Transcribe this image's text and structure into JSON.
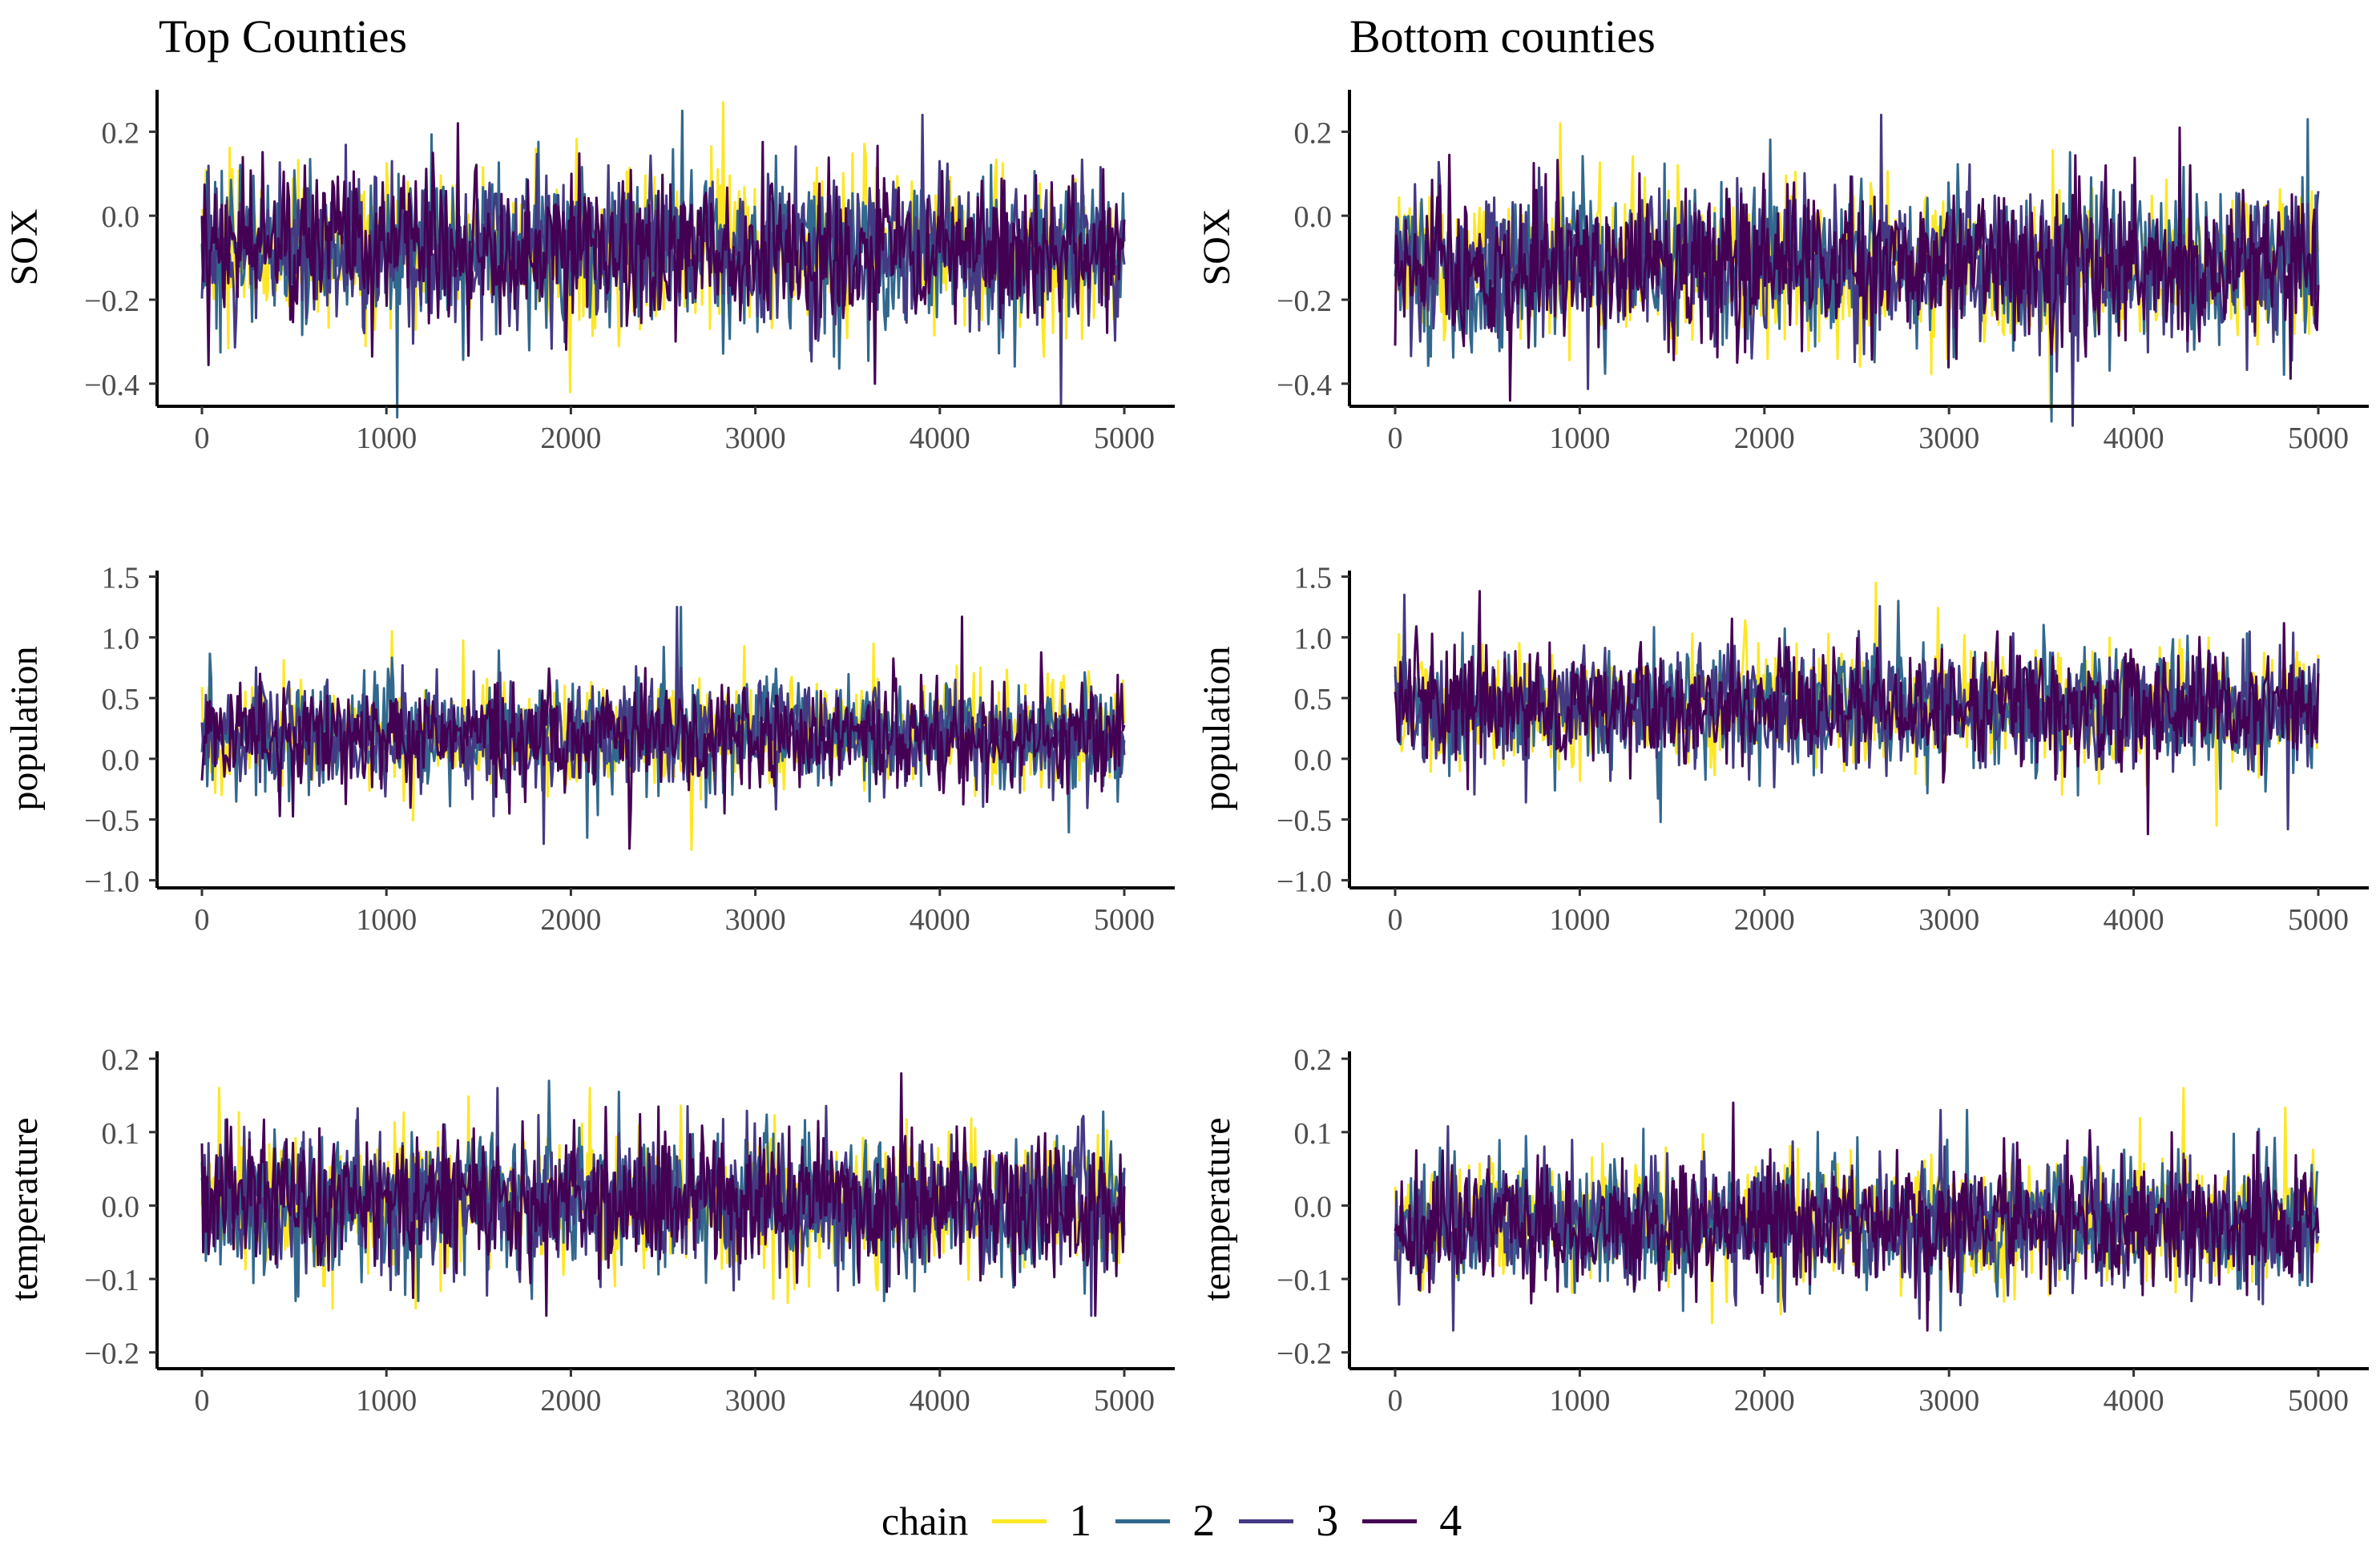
{
  "titles": {
    "left": "Top Counties",
    "right": "Bottom counties"
  },
  "legend": {
    "title": "chain",
    "items": [
      {
        "label": "1",
        "color": "#FDE725"
      },
      {
        "label": "2",
        "color": "#31688E"
      },
      {
        "label": "3",
        "color": "#443A83"
      },
      {
        "label": "4",
        "color": "#440154"
      }
    ]
  },
  "chart_data": [
    {
      "type": "line",
      "title": "Top Counties",
      "ylabel": "SOX",
      "xlabel": "",
      "xlim": [
        0,
        5000
      ],
      "ylim": [
        -0.45,
        0.3
      ],
      "xticks": [
        0,
        1000,
        2000,
        3000,
        4000,
        5000
      ],
      "xtick_labels": [
        "0",
        "1000",
        "2000",
        "3000",
        "4000",
        "5000"
      ],
      "yticks": [
        0.2,
        0.0,
        -0.2,
        -0.4
      ],
      "ytick_labels": [
        "0.2",
        "0.0",
        "−0.2",
        "−0.4"
      ],
      "series": [
        {
          "name": "1",
          "mean": -0.08,
          "sd": 0.09,
          "min": -0.42,
          "max": 0.27
        },
        {
          "name": "2",
          "mean": -0.08,
          "sd": 0.09,
          "min": -0.48,
          "max": 0.25
        },
        {
          "name": "3",
          "mean": -0.08,
          "sd": 0.09,
          "min": -0.45,
          "max": 0.24
        },
        {
          "name": "4",
          "mean": -0.08,
          "sd": 0.09,
          "min": -0.4,
          "max": 0.22
        }
      ]
    },
    {
      "type": "line",
      "title": "Bottom counties",
      "ylabel": "SOX",
      "xlabel": "",
      "xlim": [
        0,
        5000
      ],
      "ylim": [
        -0.45,
        0.3
      ],
      "xticks": [
        0,
        1000,
        2000,
        3000,
        4000,
        5000
      ],
      "xtick_labels": [
        "0",
        "1000",
        "2000",
        "3000",
        "4000",
        "5000"
      ],
      "yticks": [
        0.2,
        0.0,
        -0.2,
        -0.4
      ],
      "ytick_labels": [
        "0.2",
        "0.0",
        "−0.2",
        "−0.4"
      ],
      "series": [
        {
          "name": "1",
          "mean": -0.12,
          "sd": 0.09,
          "min": -0.46,
          "max": 0.22
        },
        {
          "name": "2",
          "mean": -0.12,
          "sd": 0.09,
          "min": -0.49,
          "max": 0.23
        },
        {
          "name": "3",
          "mean": -0.12,
          "sd": 0.09,
          "min": -0.5,
          "max": 0.24
        },
        {
          "name": "4",
          "mean": -0.12,
          "sd": 0.09,
          "min": -0.44,
          "max": 0.21
        }
      ]
    },
    {
      "type": "line",
      "title": "",
      "ylabel": "population",
      "xlabel": "",
      "xlim": [
        0,
        5000
      ],
      "ylim": [
        -1.05,
        1.55
      ],
      "xticks": [
        0,
        1000,
        2000,
        3000,
        4000,
        5000
      ],
      "xtick_labels": [
        "0",
        "1000",
        "2000",
        "3000",
        "4000",
        "5000"
      ],
      "yticks": [
        1.5,
        1.0,
        0.5,
        0.0,
        -0.5,
        -1.0
      ],
      "ytick_labels": [
        "1.5",
        "1.0",
        "0.5",
        "0.0",
        "−0.5",
        "−1.0"
      ],
      "series": [
        {
          "name": "1",
          "mean": 0.2,
          "sd": 0.22,
          "min": -0.75,
          "max": 1.05
        },
        {
          "name": "2",
          "mean": 0.2,
          "sd": 0.22,
          "min": -0.65,
          "max": 1.25
        },
        {
          "name": "3",
          "mean": 0.2,
          "sd": 0.22,
          "min": -0.7,
          "max": 1.25
        },
        {
          "name": "4",
          "mean": 0.2,
          "sd": 0.22,
          "min": -0.74,
          "max": 1.17
        }
      ]
    },
    {
      "type": "line",
      "title": "",
      "ylabel": "population",
      "xlabel": "",
      "xlim": [
        0,
        5000
      ],
      "ylim": [
        -1.05,
        1.55
      ],
      "xticks": [
        0,
        1000,
        2000,
        3000,
        4000,
        5000
      ],
      "xtick_labels": [
        "0",
        "1000",
        "2000",
        "3000",
        "4000",
        "5000"
      ],
      "yticks": [
        1.5,
        1.0,
        0.5,
        0.0,
        -0.5,
        -1.0
      ],
      "ytick_labels": [
        "1.5",
        "1.0",
        "0.5",
        "0.0",
        "−0.5",
        "−1.0"
      ],
      "series": [
        {
          "name": "1",
          "mean": 0.42,
          "sd": 0.24,
          "min": -0.55,
          "max": 1.45
        },
        {
          "name": "2",
          "mean": 0.42,
          "sd": 0.24,
          "min": -0.52,
          "max": 1.3
        },
        {
          "name": "3",
          "mean": 0.42,
          "sd": 0.24,
          "min": -0.58,
          "max": 1.35
        },
        {
          "name": "4",
          "mean": 0.42,
          "sd": 0.24,
          "min": -0.62,
          "max": 1.38
        }
      ]
    },
    {
      "type": "line",
      "title": "",
      "ylabel": "temperature",
      "xlabel": "",
      "xlim": [
        0,
        5000
      ],
      "ylim": [
        -0.22,
        0.21
      ],
      "xticks": [
        0,
        1000,
        2000,
        3000,
        4000,
        5000
      ],
      "xtick_labels": [
        "0",
        "1000",
        "2000",
        "3000",
        "4000",
        "5000"
      ],
      "yticks": [
        0.2,
        0.1,
        0.0,
        -0.1,
        -0.2
      ],
      "ytick_labels": [
        "0.2",
        "0.1",
        "0.0",
        "−0.1",
        "−0.2"
      ],
      "series": [
        {
          "name": "1",
          "mean": 0.005,
          "sd": 0.045,
          "min": -0.14,
          "max": 0.16
        },
        {
          "name": "2",
          "mean": 0.005,
          "sd": 0.045,
          "min": -0.13,
          "max": 0.17
        },
        {
          "name": "3",
          "mean": 0.005,
          "sd": 0.045,
          "min": -0.15,
          "max": 0.16
        },
        {
          "name": "4",
          "mean": 0.005,
          "sd": 0.045,
          "min": -0.15,
          "max": 0.18
        }
      ]
    },
    {
      "type": "line",
      "title": "",
      "ylabel": "temperature",
      "xlabel": "",
      "xlim": [
        0,
        5000
      ],
      "ylim": [
        -0.22,
        0.21
      ],
      "xticks": [
        0,
        1000,
        2000,
        3000,
        4000,
        5000
      ],
      "xtick_labels": [
        "0",
        "1000",
        "2000",
        "3000",
        "4000",
        "5000"
      ],
      "yticks": [
        0.2,
        0.1,
        0.0,
        -0.1,
        -0.2
      ],
      "ytick_labels": [
        "0.2",
        "0.1",
        "0.0",
        "−0.1",
        "−0.2"
      ],
      "series": [
        {
          "name": "1",
          "mean": -0.025,
          "sd": 0.042,
          "min": -0.16,
          "max": 0.16
        },
        {
          "name": "2",
          "mean": -0.025,
          "sd": 0.042,
          "min": -0.17,
          "max": 0.13
        },
        {
          "name": "3",
          "mean": -0.025,
          "sd": 0.042,
          "min": -0.17,
          "max": 0.13
        },
        {
          "name": "4",
          "mean": -0.025,
          "sd": 0.042,
          "min": -0.17,
          "max": 0.14
        }
      ]
    }
  ]
}
